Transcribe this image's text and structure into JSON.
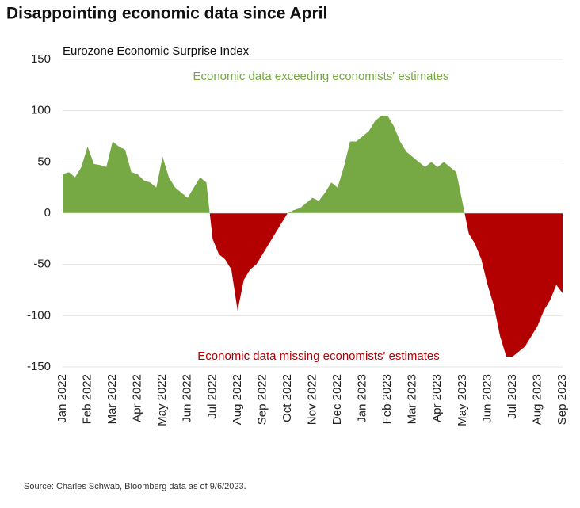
{
  "chart_data": {
    "type": "area",
    "title": "Disappointing economic data since April",
    "subtitle": "Eurozone Economic Surprise Index",
    "annotations": [
      {
        "text": "Economic data exceeding economists' estimates",
        "color": "#76a844"
      },
      {
        "text": "Economic data missing economists' estimates",
        "color": "#b30000"
      }
    ],
    "source": "Source: Charles Schwab, Bloomberg data as of 9/6/2023.",
    "categories": [
      "Jan 2022",
      null,
      null,
      null,
      "Feb 2022",
      null,
      null,
      null,
      "Mar 2022",
      null,
      null,
      null,
      "Apr 2022",
      null,
      null,
      null,
      "May 2022",
      null,
      null,
      null,
      "Jun 2022",
      null,
      null,
      null,
      "Jul 2022",
      null,
      null,
      null,
      "Aug 2022",
      null,
      null,
      null,
      "Sep 2022",
      null,
      null,
      null,
      "Oct 2022",
      null,
      null,
      null,
      "Nov 2022",
      null,
      null,
      null,
      "Dec 2022",
      null,
      null,
      null,
      "Jan 2023",
      null,
      null,
      null,
      "Feb 2023",
      null,
      null,
      null,
      "Mar 2023",
      null,
      null,
      null,
      "Apr 2023",
      null,
      null,
      null,
      "May 2023",
      null,
      null,
      null,
      "Jun 2023",
      null,
      null,
      null,
      "Jul 2023",
      null,
      null,
      null,
      "Aug 2023",
      null,
      null,
      null,
      "Sep 2023"
    ],
    "series": [
      {
        "name": "Eurozone Economic Surprise Index",
        "positive_color": "#76a844",
        "negative_color": "#b30000",
        "values": [
          38,
          40,
          35,
          45,
          65,
          48,
          47,
          45,
          70,
          65,
          62,
          40,
          38,
          32,
          30,
          25,
          55,
          35,
          25,
          20,
          15,
          25,
          35,
          30,
          -25,
          -40,
          -45,
          -55,
          -95,
          -65,
          -55,
          -50,
          -40,
          -30,
          -20,
          -10,
          0,
          3,
          5,
          10,
          15,
          12,
          20,
          30,
          25,
          45,
          70,
          70,
          75,
          80,
          90,
          95,
          95,
          85,
          70,
          60,
          55,
          50,
          45,
          50,
          45,
          50,
          45,
          40,
          10,
          -20,
          -30,
          -45,
          -70,
          -90,
          -120,
          -140,
          -140,
          -135,
          -130,
          -120,
          -110,
          -95,
          -85,
          -70,
          -78
        ]
      }
    ],
    "ylim": [
      -150,
      150
    ],
    "yticks": [
      150,
      100,
      50,
      0,
      -50,
      -100,
      -150
    ],
    "grid": true
  }
}
